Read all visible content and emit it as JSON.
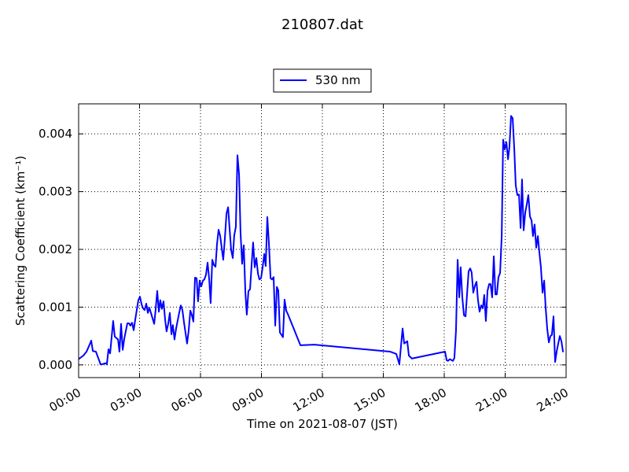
{
  "chart_data": {
    "type": "line",
    "title": "210807.dat",
    "x_label": "Time on 2021-08-07 (JST)",
    "y_label": "Scattering Coefficient (km⁻¹)",
    "legend_position": "top",
    "grid": true,
    "xlim": [
      0,
      24
    ],
    "xticks": [
      {
        "value": 0,
        "label": "00:00"
      },
      {
        "value": 3,
        "label": "03:00"
      },
      {
        "value": 6,
        "label": "06:00"
      },
      {
        "value": 9,
        "label": "09:00"
      },
      {
        "value": 12,
        "label": "12:00"
      },
      {
        "value": 15,
        "label": "15:00"
      },
      {
        "value": 18,
        "label": "18:00"
      },
      {
        "value": 21,
        "label": "21:00"
      },
      {
        "value": 24,
        "label": "24:00"
      }
    ],
    "ylim": [
      -0.00022,
      0.00452
    ],
    "yticks": [
      {
        "value": 0,
        "label": "0.000"
      },
      {
        "value": 0.001,
        "label": "0.001"
      },
      {
        "value": 0.002,
        "label": "0.002"
      },
      {
        "value": 0.003,
        "label": "0.003"
      },
      {
        "value": 0.004,
        "label": "0.004"
      }
    ],
    "x": [
      0,
      0.23,
      0.39,
      0.54,
      0.62,
      0.7,
      0.85,
      1.08,
      1.16,
      1.32,
      1.39,
      1.47,
      1.55,
      1.7,
      1.78,
      1.94,
      2.01,
      2.09,
      2.17,
      2.25,
      2.4,
      2.48,
      2.55,
      2.63,
      2.71,
      2.79,
      2.94,
      3.02,
      3.1,
      3.17,
      3.25,
      3.33,
      3.41,
      3.48,
      3.56,
      3.72,
      3.79,
      3.87,
      3.95,
      4.02,
      4.1,
      4.18,
      4.26,
      4.33,
      4.41,
      4.49,
      4.57,
      4.64,
      4.72,
      4.8,
      4.95,
      5.03,
      5.11,
      5.19,
      5.34,
      5.42,
      5.5,
      5.57,
      5.65,
      5.73,
      5.81,
      5.88,
      5.96,
      6.04,
      6.12,
      6.19,
      6.27,
      6.35,
      6.43,
      6.5,
      6.58,
      6.66,
      6.74,
      6.81,
      6.89,
      6.97,
      7.05,
      7.12,
      7.2,
      7.28,
      7.36,
      7.43,
      7.51,
      7.59,
      7.66,
      7.74,
      7.82,
      7.9,
      7.97,
      8.05,
      8.13,
      8.21,
      8.28,
      8.36,
      8.44,
      8.52,
      8.59,
      8.67,
      8.75,
      8.83,
      8.9,
      8.98,
      9.06,
      9.14,
      9.21,
      9.29,
      9.37,
      9.45,
      9.52,
      9.6,
      9.68,
      9.76,
      9.83,
      9.91,
      9.99,
      10.06,
      10.14,
      10.22,
      10.3,
      10.45,
      10.92,
      11.61,
      15.33,
      15.64,
      15.79,
      15.95,
      16.03,
      16.18,
      16.26,
      16.41,
      18.04,
      18.12,
      18.19,
      18.27,
      18.43,
      18.5,
      18.58,
      18.66,
      18.74,
      18.81,
      18.89,
      18.97,
      19.05,
      19.2,
      19.28,
      19.35,
      19.43,
      19.51,
      19.59,
      19.66,
      19.74,
      19.82,
      19.9,
      19.97,
      20.05,
      20.13,
      20.21,
      20.28,
      20.36,
      20.44,
      20.52,
      20.59,
      20.67,
      20.75,
      20.83,
      20.9,
      20.98,
      21.06,
      21.14,
      21.21,
      21.29,
      21.37,
      21.45,
      21.52,
      21.6,
      21.68,
      21.76,
      21.83,
      21.91,
      21.99,
      22.06,
      22.14,
      22.22,
      22.3,
      22.37,
      22.45,
      22.53,
      22.61,
      22.68,
      22.76,
      22.84,
      22.92,
      22.99,
      23.07,
      23.15,
      23.23,
      23.3,
      23.38,
      23.46,
      23.54,
      23.69,
      23.77,
      23.85
    ],
    "series": [
      {
        "name": "530 nm",
        "color": "#0000ff",
        "values": [
          0.0001,
          0.00016,
          0.00023,
          0.00035,
          0.00042,
          0.00024,
          0.00023,
          1e-05,
          1e-05,
          3e-05,
          1e-05,
          0.00027,
          0.0002,
          0.00076,
          0.00049,
          0.00044,
          0.00023,
          0.00071,
          0.00026,
          0.00046,
          0.00072,
          0.00072,
          0.00068,
          0.00073,
          0.0006,
          0.00079,
          0.00112,
          0.00118,
          0.00105,
          0.00098,
          0.00095,
          0.00106,
          0.0009,
          0.00099,
          0.0009,
          0.00071,
          0.00095,
          0.00128,
          0.00092,
          0.00112,
          0.00097,
          0.0011,
          0.00078,
          0.00058,
          0.00071,
          0.0009,
          0.00053,
          0.00069,
          0.00044,
          0.00063,
          0.0009,
          0.00103,
          0.00095,
          0.00073,
          0.00037,
          0.0006,
          0.00094,
          0.00087,
          0.00075,
          0.00151,
          0.0015,
          0.0011,
          0.00146,
          0.00136,
          0.00146,
          0.00148,
          0.00156,
          0.00177,
          0.00148,
          0.00107,
          0.00182,
          0.00173,
          0.0017,
          0.00208,
          0.00234,
          0.00223,
          0.00201,
          0.00182,
          0.00219,
          0.00262,
          0.00273,
          0.00237,
          0.00199,
          0.00185,
          0.00224,
          0.00239,
          0.00363,
          0.00329,
          0.0023,
          0.00175,
          0.00207,
          0.00125,
          0.00087,
          0.00128,
          0.00131,
          0.00175,
          0.00212,
          0.00169,
          0.00185,
          0.00158,
          0.00148,
          0.0015,
          0.00169,
          0.00192,
          0.00171,
          0.00256,
          0.00209,
          0.0015,
          0.00148,
          0.00152,
          0.00068,
          0.00135,
          0.00129,
          0.00056,
          0.00052,
          0.00048,
          0.00113,
          0.00094,
          0.00088,
          0.00075,
          0.00034,
          0.00035,
          0.00023,
          0.00019,
          1e-05,
          0.00063,
          0.00037,
          0.00041,
          0.00016,
          0.00011,
          0.00023,
          8e-05,
          7e-05,
          0.0001,
          7e-05,
          0.00012,
          0.0006,
          0.00182,
          0.00117,
          0.00169,
          0.00117,
          0.00086,
          0.00084,
          0.00162,
          0.00167,
          0.0016,
          0.00125,
          0.00137,
          0.00144,
          0.00113,
          0.00092,
          0.00103,
          0.00098,
          0.00121,
          0.00076,
          0.00128,
          0.0014,
          0.0014,
          0.00117,
          0.00188,
          0.00122,
          0.00122,
          0.00152,
          0.00159,
          0.00223,
          0.0039,
          0.00373,
          0.00386,
          0.00356,
          0.00377,
          0.00431,
          0.00427,
          0.00373,
          0.00311,
          0.00294,
          0.00295,
          0.00237,
          0.00321,
          0.00233,
          0.00264,
          0.00277,
          0.00294,
          0.00257,
          0.0025,
          0.00223,
          0.00243,
          0.00203,
          0.00223,
          0.00196,
          0.00169,
          0.00125,
          0.00146,
          0.00101,
          0.00063,
          0.00039,
          0.0005,
          0.00052,
          0.00084,
          5e-05,
          0.00024,
          0.0005,
          0.00041,
          0.00022
        ]
      }
    ]
  }
}
